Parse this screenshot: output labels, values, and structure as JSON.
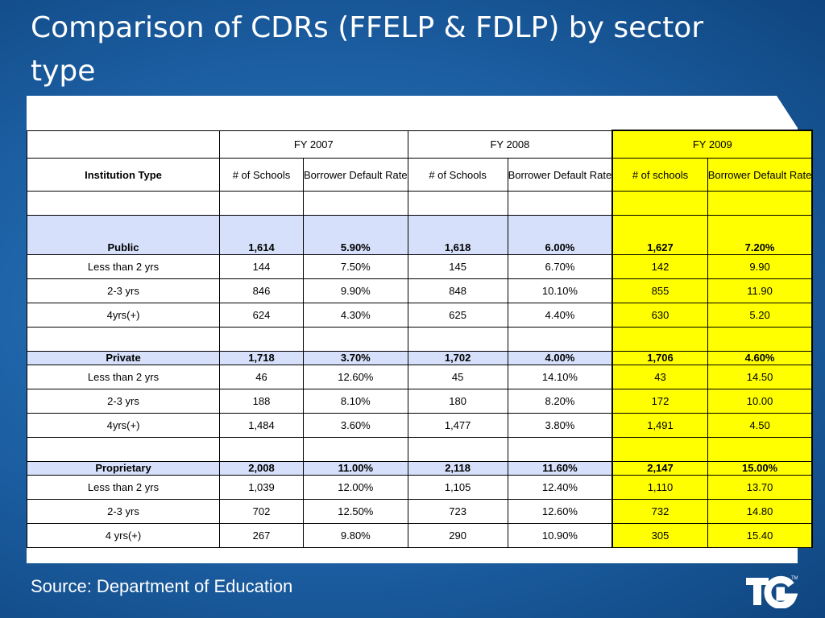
{
  "slide": {
    "title": "Comparison of CDRs (FFELP & FDLP) by sector type",
    "source": "Source: Department of Education",
    "colors": {
      "background": "#1c5fa3",
      "highlight": "#ffff00",
      "category_row": "#d6e0fa"
    },
    "logo_icon": "tg-logo-icon"
  },
  "table": {
    "years": [
      "FY 2007",
      "FY 2008",
      "FY 2009"
    ],
    "row_header": "Institution Type",
    "subheaders": [
      "# of Schools",
      "Borrower Default Rate",
      "# of Schools",
      "Borrower Default Rate",
      "# of schools",
      "Borrower Default Rate"
    ],
    "sections": [
      {
        "name": "Public",
        "values": [
          "1,614",
          "5.90%",
          "1,618",
          "6.00%",
          "1,627",
          "7.20%"
        ],
        "rows": [
          {
            "label": "Less than 2 yrs",
            "values": [
              "144",
              "7.50%",
              "145",
              "6.70%",
              "142",
              "9.90"
            ]
          },
          {
            "label": "2-3 yrs",
            "values": [
              "846",
              "9.90%",
              "848",
              "10.10%",
              "855",
              "11.90"
            ]
          },
          {
            "label": "4yrs(+)",
            "values": [
              "624",
              "4.30%",
              "625",
              "4.40%",
              "630",
              "5.20"
            ]
          }
        ]
      },
      {
        "name": "Private",
        "values": [
          "1,718",
          "3.70%",
          "1,702",
          "4.00%",
          "1,706",
          "4.60%"
        ],
        "rows": [
          {
            "label": "Less than 2 yrs",
            "values": [
              "46",
              "12.60%",
              "45",
              "14.10%",
              "43",
              "14.50"
            ]
          },
          {
            "label": "2-3 yrs",
            "values": [
              "188",
              "8.10%",
              "180",
              "8.20%",
              "172",
              "10.00"
            ]
          },
          {
            "label": "4yrs(+)",
            "values": [
              "1,484",
              "3.60%",
              "1,477",
              "3.80%",
              "1,491",
              "4.50"
            ]
          }
        ]
      },
      {
        "name": "Proprietary",
        "values": [
          "2,008",
          "11.00%",
          "2,118",
          "11.60%",
          "2,147",
          "15.00%"
        ],
        "rows": [
          {
            "label": "Less than 2 yrs",
            "values": [
              "1,039",
              "12.00%",
              "1,105",
              "12.40%",
              "1,110",
              "13.70"
            ]
          },
          {
            "label": "2-3 yrs",
            "values": [
              "702",
              "12.50%",
              "723",
              "12.60%",
              "732",
              "14.80"
            ]
          },
          {
            "label": "4 yrs(+)",
            "values": [
              "267",
              "9.80%",
              "290",
              "10.90%",
              "305",
              "15.40"
            ]
          }
        ]
      }
    ]
  }
}
